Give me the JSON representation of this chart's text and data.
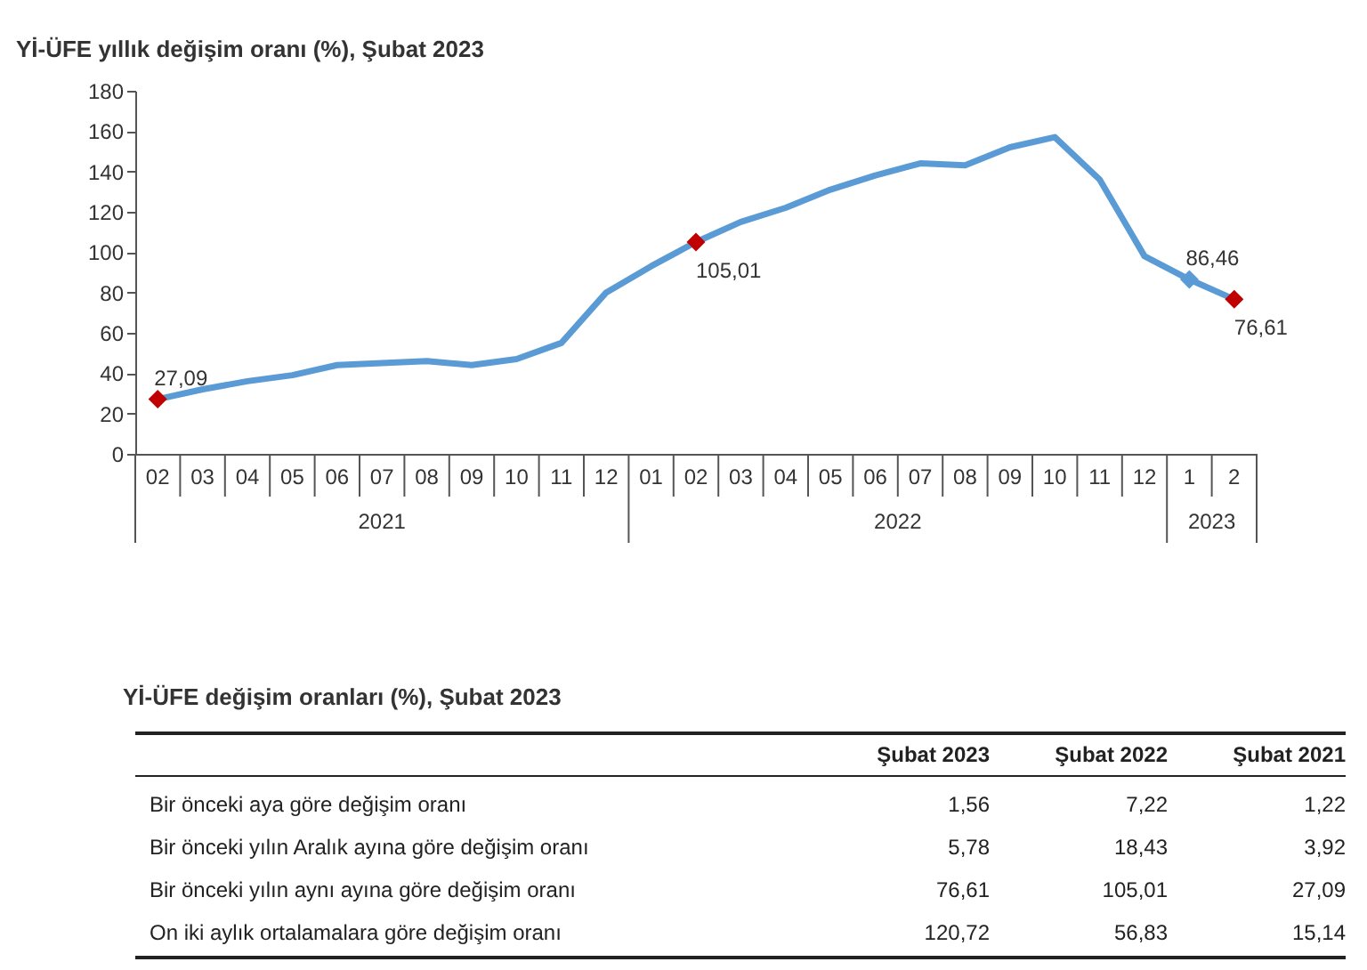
{
  "chart_data": [
    {
      "type": "line",
      "title": "Yİ-ÜFE yıllık değişim oranı (%), Şubat 2023",
      "categories": [
        "02",
        "03",
        "04",
        "05",
        "06",
        "07",
        "08",
        "09",
        "10",
        "11",
        "12",
        "01",
        "02",
        "03",
        "04",
        "05",
        "06",
        "07",
        "08",
        "09",
        "10",
        "11",
        "12",
        "1",
        "2"
      ],
      "annotations": [
        "2021",
        "2022",
        "2023"
      ],
      "series": [
        {
          "color": "#5b9bd5",
          "values": [
            27.09,
            32,
            36,
            39,
            44,
            45,
            46,
            44,
            47,
            55,
            80,
            93,
            105.01,
            115,
            122,
            131,
            138,
            144,
            143,
            152,
            157,
            136,
            98,
            86.46,
            76.61
          ],
          "value_labels": [
            "27,09",
            null,
            null,
            null,
            null,
            null,
            null,
            null,
            null,
            null,
            null,
            null,
            "105,01",
            null,
            null,
            null,
            null,
            null,
            null,
            null,
            null,
            null,
            null,
            "86,46",
            "76,61"
          ],
          "colors": [
            "#c00000",
            null,
            null,
            null,
            null,
            null,
            null,
            null,
            null,
            null,
            null,
            null,
            "#c00000",
            null,
            null,
            null,
            null,
            null,
            null,
            null,
            null,
            null,
            null,
            "#5b9bd5",
            "#c00000"
          ]
        }
      ],
      "ylim": [
        0,
        180
      ],
      "yticks": [
        0,
        20,
        40,
        60,
        80,
        100,
        120,
        140,
        160,
        180
      ],
      "grid": false
    },
    {
      "type": "other",
      "title": "Yİ-ÜFE değişim oranları (%), Şubat 2023",
      "categories": [
        "Şubat 2023",
        "Şubat 2022",
        "Şubat 2021"
      ],
      "y_categories": [
        "Bir önceki aya göre değişim oranı",
        "Bir önceki yılın Aralık ayına göre değişim oranı",
        "Bir önceki yılın aynı ayına göre değişim oranı",
        "On iki aylık ortalamalara göre değişim oranı"
      ],
      "cell_labels": [
        [
          "1,56",
          "7,22",
          "1,22"
        ],
        [
          "5,78",
          "18,43",
          "3,92"
        ],
        [
          "76,61",
          "105,01",
          "27,09"
        ],
        [
          "120,72",
          "56,83",
          "15,14"
        ]
      ]
    }
  ]
}
